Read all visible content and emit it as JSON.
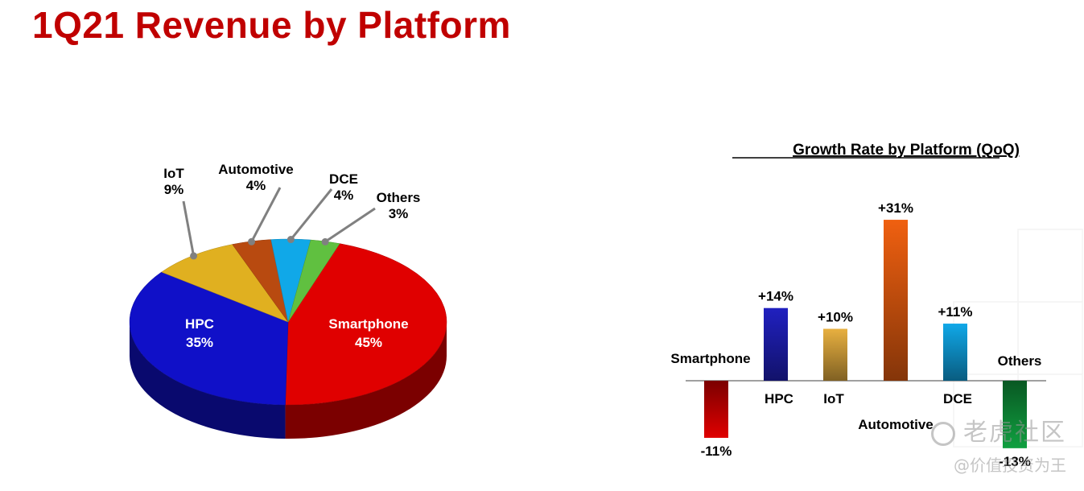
{
  "page": {
    "title": "1Q21 Revenue by Platform"
  },
  "colors": {
    "title": "#c00000",
    "smartphone": "#e00000",
    "hpc": "#1010c8",
    "iot": "#e0b020",
    "automotive": "#b84a10",
    "dce": "#10a8e8",
    "others": "#60c040",
    "auto_bar": "#f06010",
    "others_bar": "#10a040"
  },
  "chart_data": [
    {
      "type": "pie",
      "title": "",
      "slices": [
        {
          "name": "Smartphone",
          "value": 45,
          "label": "45%",
          "color": "#e00000"
        },
        {
          "name": "HPC",
          "value": 35,
          "label": "35%",
          "color": "#1010c8"
        },
        {
          "name": "IoT",
          "value": 9,
          "label": "9%",
          "color": "#e0b020"
        },
        {
          "name": "Automotive",
          "value": 4,
          "label": "4%",
          "color": "#b84a10"
        },
        {
          "name": "DCE",
          "value": 4,
          "label": "4%",
          "color": "#10a8e8"
        },
        {
          "name": "Others",
          "value": 3,
          "label": "3%",
          "color": "#60c040"
        }
      ],
      "style": "3d"
    },
    {
      "type": "bar",
      "title": "Growth Rate by Platform (QoQ)",
      "categories": [
        "Smartphone",
        "HPC",
        "IoT",
        "Automotive",
        "DCE",
        "Others"
      ],
      "values": [
        -11,
        14,
        10,
        31,
        11,
        -13
      ],
      "value_labels": [
        "-11%",
        "+14%",
        "+10%",
        "+31%",
        "+11%",
        "-13%"
      ],
      "colors": [
        "#e00000",
        "#2020c0",
        "#e8b040",
        "#f06010",
        "#10a8e8",
        "#10a040"
      ],
      "ylim": [
        -15,
        33
      ],
      "grid": false,
      "axis": "zero baseline only"
    }
  ],
  "watermark": {
    "brand": "老虎社区",
    "handle": "@价值投资为王"
  }
}
